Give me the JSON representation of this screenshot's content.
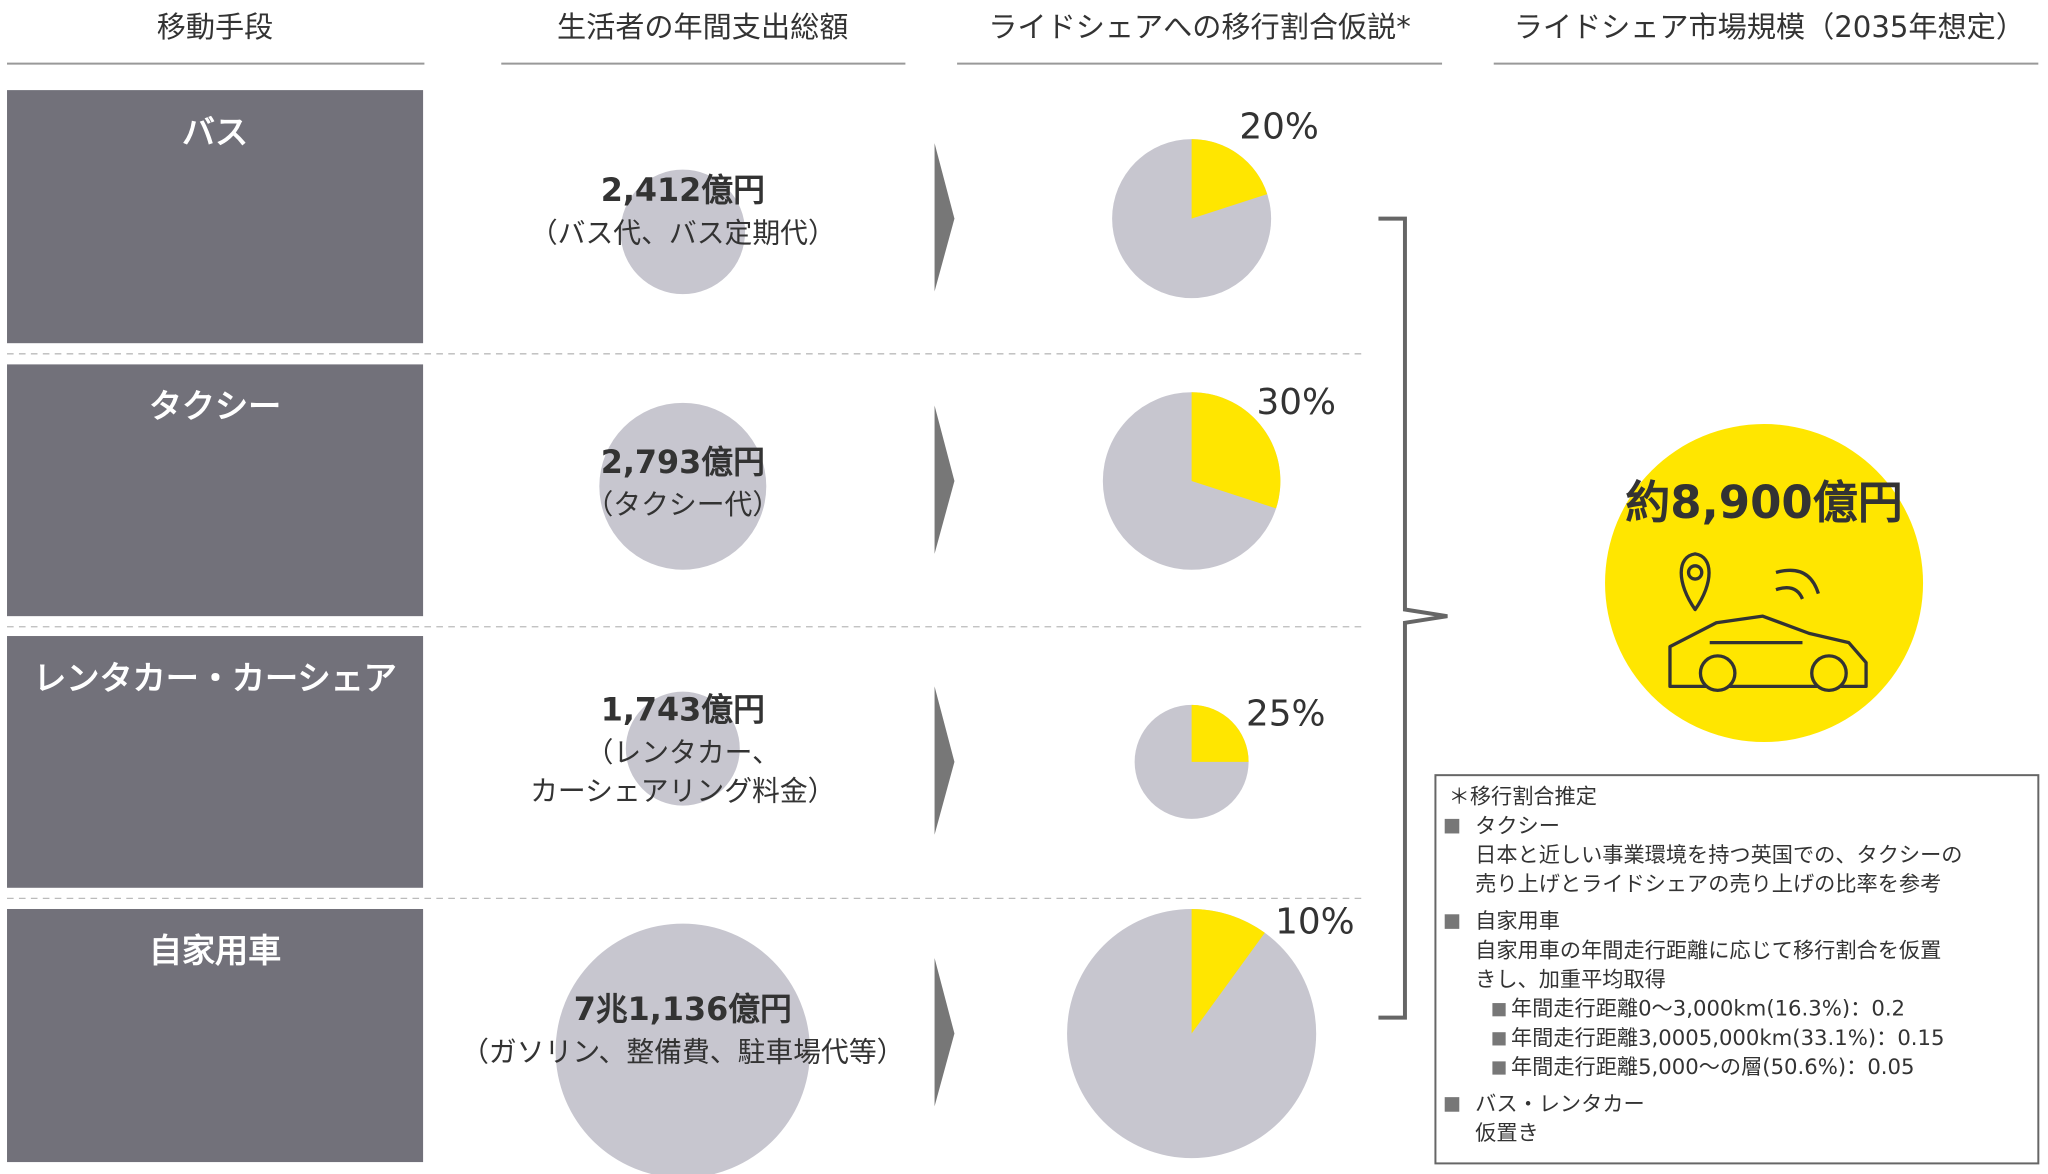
{
  "headers": [
    "移動手段",
    "生活者の年間支出総額",
    "ライドシェアへの移行割合仮説*",
    "ライドシェア市場規模（2035年想定）"
  ],
  "rows": [
    {
      "mode": "バス",
      "spending": "2,412億円",
      "detail": [
        "（バス代、バス定期代）"
      ],
      "share": {
        "value": 20,
        "label": "20%"
      }
    },
    {
      "mode": "タクシー",
      "spending": "2,793億円",
      "detail": [
        "（タクシー代）"
      ],
      "share": {
        "value": 30,
        "label": "30%"
      }
    },
    {
      "mode": "レンタカー・カーシェア",
      "spending": "1,743億円",
      "detail": [
        "（レンタカー、",
        "カーシェアリング料金）"
      ],
      "share": {
        "value": 25,
        "label": "25%"
      }
    },
    {
      "mode": "自家用車",
      "spending": "7兆1,136億円",
      "detail": [
        "（ガソリン、整備費、駐車場代等）"
      ],
      "share": {
        "value": 10,
        "label": "10%"
      }
    }
  ],
  "market": "約8,900億円",
  "note": {
    "title": "＊移行割合推定",
    "items": [
      {
        "head": "タクシー",
        "lines": [
          "日本と近しい事業環境を持つ英国での、タクシーの",
          "売り上げとライドシェアの売り上げの比率を参考"
        ],
        "subs": []
      },
      {
        "head": "自家用車",
        "lines": [
          "自家用車の年間走行距離に応じて移行割合を仮置",
          "きし、加重平均取得"
        ],
        "subs": [
          "年間走行距離0～3,000km(16.3%)：0.2",
          "年間走行距離3,0005,000km(33.1%)：0.15",
          "年間走行距離5,000～の層(50.6%)：0.05"
        ]
      },
      {
        "head": "バス・レンタカー",
        "lines": [
          "仮置き"
        ],
        "subs": []
      }
    ]
  }
}
